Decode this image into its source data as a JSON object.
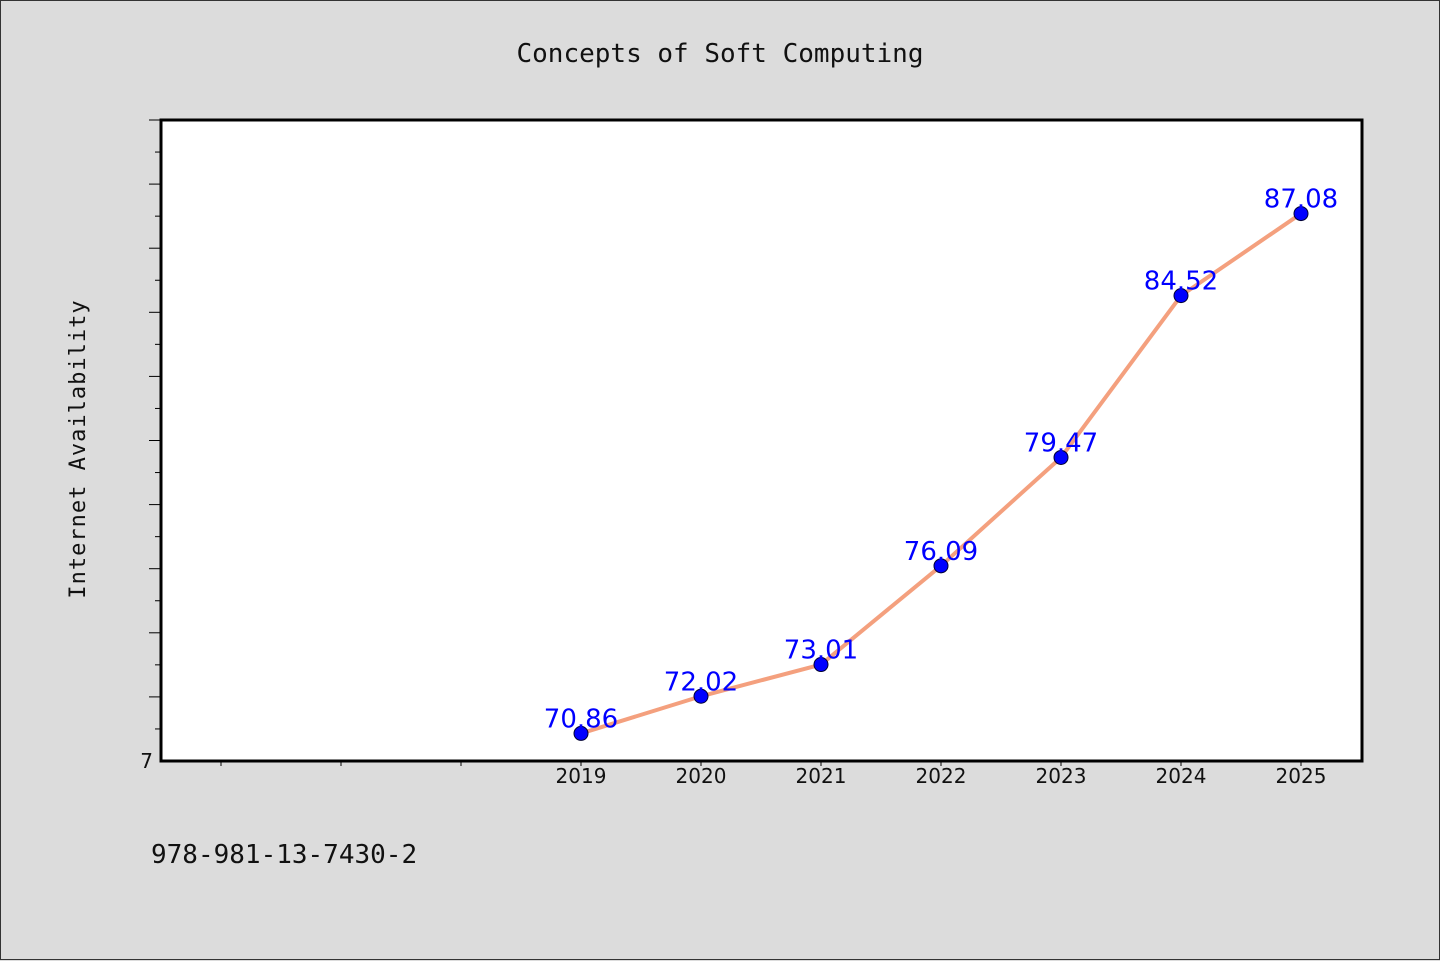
{
  "chart_data": {
    "type": "line",
    "title": "Concepts of Soft Computing",
    "ylabel": "Internet Availability",
    "xlabel": "",
    "x": [
      "2019",
      "2020",
      "2021",
      "2022",
      "2023",
      "2024",
      "2025"
    ],
    "series": [
      {
        "values": [
          70.86,
          72.02,
          73.01,
          76.09,
          79.47,
          84.52,
          87.08
        ],
        "data_labels": [
          "70.86",
          "72.02",
          "73.01",
          "76.09",
          "79.47",
          "84.52",
          "87.08"
        ]
      }
    ],
    "ylim": [
      70,
      90
    ],
    "y_tick_labels": [
      "7"
    ],
    "grid": false,
    "legend": "none",
    "colors": {
      "line": "#f4a07e",
      "marker": "#0000ff",
      "data_label": "#0000ff",
      "background": "#dcdcdc",
      "plot_background": "#ffffff"
    }
  },
  "footer": {
    "isbn": "978-981-13-7430-2"
  }
}
